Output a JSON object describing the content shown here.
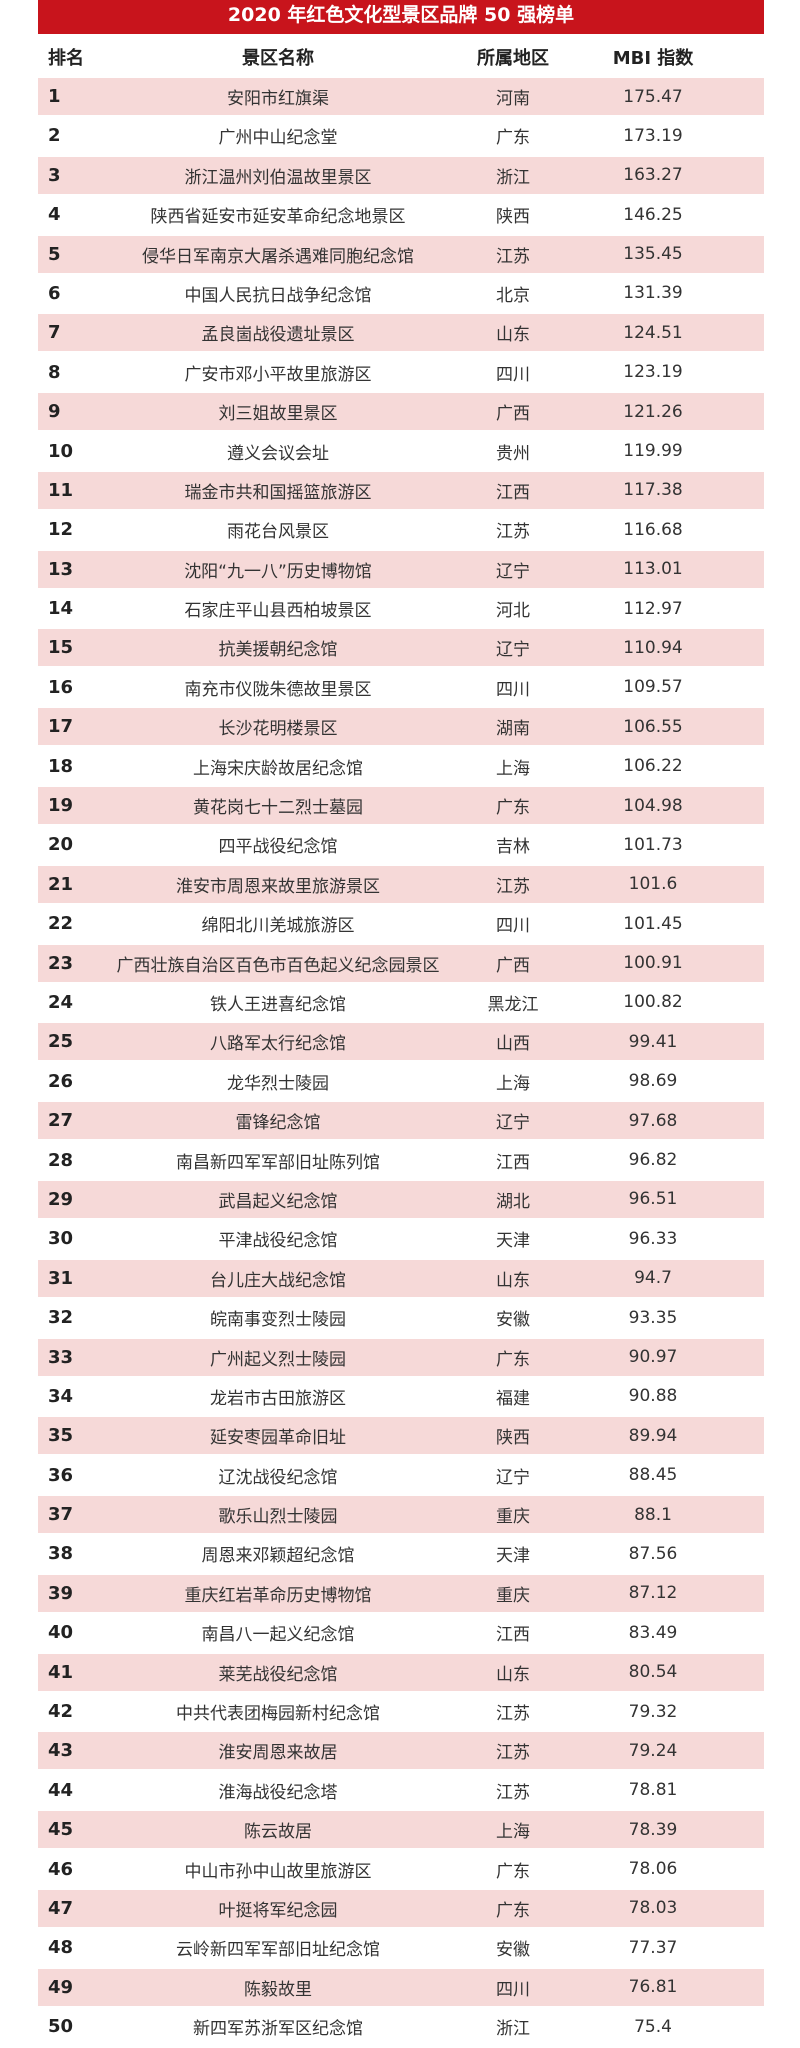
{
  "title": "2020 年红色文化型景区品牌 50 强榜单",
  "colors": {
    "title_bg": "#c8141c",
    "odd_row_bg": "#f6d9d8"
  },
  "headers": {
    "rank": "排名",
    "name": "景区名称",
    "region": "所属地区",
    "mbi": "MBI 指数"
  },
  "rows": [
    {
      "rank": "1",
      "name": "安阳市红旗渠",
      "region": "河南",
      "mbi": "175.47"
    },
    {
      "rank": "2",
      "name": "广州中山纪念堂",
      "region": "广东",
      "mbi": "173.19"
    },
    {
      "rank": "3",
      "name": "浙江温州刘伯温故里景区",
      "region": "浙江",
      "mbi": "163.27"
    },
    {
      "rank": "4",
      "name": "陕西省延安市延安革命纪念地景区",
      "region": "陕西",
      "mbi": "146.25"
    },
    {
      "rank": "5",
      "name": "侵华日军南京大屠杀遇难同胞纪念馆",
      "region": "江苏",
      "mbi": "135.45"
    },
    {
      "rank": "6",
      "name": "中国人民抗日战争纪念馆",
      "region": "北京",
      "mbi": "131.39"
    },
    {
      "rank": "7",
      "name": "孟良崮战役遗址景区",
      "region": "山东",
      "mbi": "124.51"
    },
    {
      "rank": "8",
      "name": "广安市邓小平故里旅游区",
      "region": "四川",
      "mbi": "123.19"
    },
    {
      "rank": "9",
      "name": "刘三姐故里景区",
      "region": "广西",
      "mbi": "121.26"
    },
    {
      "rank": "10",
      "name": "遵义会议会址",
      "region": "贵州",
      "mbi": "119.99"
    },
    {
      "rank": "11",
      "name": "瑞金市共和国摇篮旅游区",
      "region": "江西",
      "mbi": "117.38"
    },
    {
      "rank": "12",
      "name": "雨花台风景区",
      "region": "江苏",
      "mbi": "116.68"
    },
    {
      "rank": "13",
      "name": "沈阳“九一八”历史博物馆",
      "region": "辽宁",
      "mbi": "113.01"
    },
    {
      "rank": "14",
      "name": "石家庄平山县西柏坡景区",
      "region": "河北",
      "mbi": "112.97"
    },
    {
      "rank": "15",
      "name": "抗美援朝纪念馆",
      "region": "辽宁",
      "mbi": "110.94"
    },
    {
      "rank": "16",
      "name": "南充市仪陇朱德故里景区",
      "region": "四川",
      "mbi": "109.57"
    },
    {
      "rank": "17",
      "name": "长沙花明楼景区",
      "region": "湖南",
      "mbi": "106.55"
    },
    {
      "rank": "18",
      "name": "上海宋庆龄故居纪念馆",
      "region": "上海",
      "mbi": "106.22"
    },
    {
      "rank": "19",
      "name": "黄花岗七十二烈士墓园",
      "region": "广东",
      "mbi": "104.98"
    },
    {
      "rank": "20",
      "name": "四平战役纪念馆",
      "region": "吉林",
      "mbi": "101.73"
    },
    {
      "rank": "21",
      "name": "淮安市周恩来故里旅游景区",
      "region": "江苏",
      "mbi": "101.6"
    },
    {
      "rank": "22",
      "name": "绵阳北川羌城旅游区",
      "region": "四川",
      "mbi": "101.45"
    },
    {
      "rank": "23",
      "name": "广西壮族自治区百色市百色起义纪念园景区",
      "region": "广西",
      "mbi": "100.91"
    },
    {
      "rank": "24",
      "name": "铁人王进喜纪念馆",
      "region": "黑龙江",
      "mbi": "100.82"
    },
    {
      "rank": "25",
      "name": "八路军太行纪念馆",
      "region": "山西",
      "mbi": "99.41"
    },
    {
      "rank": "26",
      "name": "龙华烈士陵园",
      "region": "上海",
      "mbi": "98.69"
    },
    {
      "rank": "27",
      "name": "雷锋纪念馆",
      "region": "辽宁",
      "mbi": "97.68"
    },
    {
      "rank": "28",
      "name": "南昌新四军军部旧址陈列馆",
      "region": "江西",
      "mbi": "96.82"
    },
    {
      "rank": "29",
      "name": "武昌起义纪念馆",
      "region": "湖北",
      "mbi": "96.51"
    },
    {
      "rank": "30",
      "name": "平津战役纪念馆",
      "region": "天津",
      "mbi": "96.33"
    },
    {
      "rank": "31",
      "name": "台儿庄大战纪念馆",
      "region": "山东",
      "mbi": "94.7"
    },
    {
      "rank": "32",
      "name": "皖南事变烈士陵园",
      "region": "安徽",
      "mbi": "93.35"
    },
    {
      "rank": "33",
      "name": "广州起义烈士陵园",
      "region": "广东",
      "mbi": "90.97"
    },
    {
      "rank": "34",
      "name": "龙岩市古田旅游区",
      "region": "福建",
      "mbi": "90.88"
    },
    {
      "rank": "35",
      "name": "延安枣园革命旧址",
      "region": "陕西",
      "mbi": "89.94"
    },
    {
      "rank": "36",
      "name": "辽沈战役纪念馆",
      "region": "辽宁",
      "mbi": "88.45"
    },
    {
      "rank": "37",
      "name": "歌乐山烈士陵园",
      "region": "重庆",
      "mbi": "88.1"
    },
    {
      "rank": "38",
      "name": "周恩来邓颖超纪念馆",
      "region": "天津",
      "mbi": "87.56"
    },
    {
      "rank": "39",
      "name": "重庆红岩革命历史博物馆",
      "region": "重庆",
      "mbi": "87.12"
    },
    {
      "rank": "40",
      "name": "南昌八一起义纪念馆",
      "region": "江西",
      "mbi": "83.49"
    },
    {
      "rank": "41",
      "name": "莱芜战役纪念馆",
      "region": "山东",
      "mbi": "80.54"
    },
    {
      "rank": "42",
      "name": "中共代表团梅园新村纪念馆",
      "region": "江苏",
      "mbi": "79.32"
    },
    {
      "rank": "43",
      "name": "淮安周恩来故居",
      "region": "江苏",
      "mbi": "79.24"
    },
    {
      "rank": "44",
      "name": "淮海战役纪念塔",
      "region": "江苏",
      "mbi": "78.81"
    },
    {
      "rank": "45",
      "name": "陈云故居",
      "region": "上海",
      "mbi": "78.39"
    },
    {
      "rank": "46",
      "name": "中山市孙中山故里旅游区",
      "region": "广东",
      "mbi": "78.06"
    },
    {
      "rank": "47",
      "name": "叶挺将军纪念园",
      "region": "广东",
      "mbi": "78.03"
    },
    {
      "rank": "48",
      "name": "云岭新四军军部旧址纪念馆",
      "region": "安徽",
      "mbi": "77.37"
    },
    {
      "rank": "49",
      "name": "陈毅故里",
      "region": "四川",
      "mbi": "76.81"
    },
    {
      "rank": "50",
      "name": "新四军苏浙军区纪念馆",
      "region": "浙江",
      "mbi": "75.4"
    }
  ]
}
